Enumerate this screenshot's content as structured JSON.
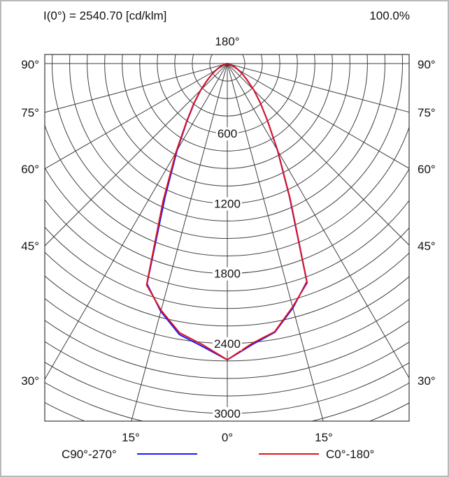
{
  "header": {
    "intensity_label": "I(0°) = 2540.70 [cd/klm]",
    "efficiency_label": "100.0%"
  },
  "chart_data": {
    "type": "polar",
    "title": "",
    "top_angle_label": "180°",
    "left_angle_labels": [
      "90°",
      "75°",
      "60°",
      "45°",
      "30°"
    ],
    "right_angle_labels": [
      "90°",
      "75°",
      "60°",
      "45°",
      "30°"
    ],
    "bottom_angle_labels": [
      "15°",
      "0°",
      "15°"
    ],
    "radial_ticks": [
      600,
      1200,
      1800,
      2400,
      3000
    ],
    "radial_max": 3000,
    "angle_unit": "deg",
    "value_unit": "cd/klm",
    "series": [
      {
        "name": "C90°-270°",
        "color": "#1a1aff",
        "points_left": [
          [
            0,
            2540
          ],
          [
            5,
            2435
          ],
          [
            10,
            2360
          ],
          [
            15,
            2200
          ],
          [
            20,
            2010
          ],
          [
            25,
            1260
          ],
          [
            30,
            860
          ],
          [
            35,
            600
          ],
          [
            40,
            440
          ],
          [
            45,
            320
          ],
          [
            50,
            225
          ],
          [
            55,
            160
          ],
          [
            60,
            110
          ],
          [
            65,
            70
          ],
          [
            70,
            40
          ],
          [
            75,
            20
          ],
          [
            80,
            8
          ],
          [
            85,
            3
          ],
          [
            90,
            0
          ]
        ],
        "points_right": [
          [
            0,
            2540
          ],
          [
            5,
            2420
          ],
          [
            10,
            2340
          ],
          [
            15,
            2170
          ],
          [
            20,
            1990
          ],
          [
            25,
            1260
          ],
          [
            30,
            860
          ],
          [
            35,
            600
          ],
          [
            40,
            440
          ],
          [
            45,
            320
          ],
          [
            50,
            225
          ],
          [
            55,
            160
          ],
          [
            60,
            110
          ],
          [
            65,
            70
          ],
          [
            70,
            40
          ],
          [
            75,
            20
          ],
          [
            80,
            8
          ],
          [
            85,
            3
          ],
          [
            90,
            0
          ]
        ]
      },
      {
        "name": "C0°-180°",
        "color": "#e0141e",
        "points_left": [
          [
            0,
            2540
          ],
          [
            5,
            2420
          ],
          [
            10,
            2345
          ],
          [
            15,
            2190
          ],
          [
            20,
            2020
          ],
          [
            25,
            1300
          ],
          [
            30,
            880
          ],
          [
            35,
            610
          ],
          [
            40,
            445
          ],
          [
            45,
            325
          ],
          [
            50,
            228
          ],
          [
            55,
            162
          ],
          [
            60,
            112
          ],
          [
            65,
            72
          ],
          [
            70,
            42
          ],
          [
            75,
            22
          ],
          [
            80,
            9
          ],
          [
            85,
            3
          ],
          [
            90,
            0
          ]
        ],
        "points_right": [
          [
            0,
            2540
          ],
          [
            5,
            2410
          ],
          [
            10,
            2335
          ],
          [
            15,
            2160
          ],
          [
            20,
            2000
          ],
          [
            25,
            1270
          ],
          [
            30,
            865
          ],
          [
            35,
            603
          ],
          [
            40,
            441
          ],
          [
            45,
            321
          ],
          [
            50,
            226
          ],
          [
            55,
            161
          ],
          [
            60,
            111
          ],
          [
            65,
            71
          ],
          [
            70,
            41
          ],
          [
            75,
            21
          ],
          [
            80,
            8
          ],
          [
            85,
            3
          ],
          [
            90,
            0
          ]
        ]
      }
    ]
  }
}
